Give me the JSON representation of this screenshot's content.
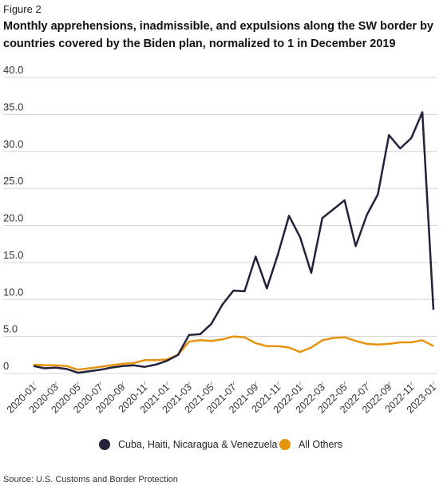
{
  "figure_label": "Figure 2",
  "title": "Monthly apprehensions, inadmissible, and expulsions along the SW border by countries covered by the Biden plan, normalized to 1 in December 2019",
  "source": "Source: U.S. Customs and Border Protection",
  "chart_data": {
    "type": "line",
    "ylim": [
      0,
      40
    ],
    "yticks": [
      "40.0",
      "35.0",
      "30.0",
      "25.0",
      "20.0",
      "15.0",
      "10.0",
      "5.0",
      "0"
    ],
    "ytick_values": [
      40,
      35,
      30,
      25,
      20,
      15,
      10,
      5,
      0
    ],
    "grid": true,
    "legend_position": "bottom",
    "x": [
      "2020-01",
      "2020-02",
      "2020-03",
      "2020-04",
      "2020-05",
      "2020-06",
      "2020-07",
      "2020-08",
      "2020-09",
      "2020-10",
      "2020-11",
      "2020-12",
      "2021-01",
      "2021-02",
      "2021-03",
      "2021-04",
      "2021-05",
      "2021-06",
      "2021-07",
      "2021-08",
      "2021-09",
      "2021-10",
      "2021-11",
      "2021-12",
      "2022-01",
      "2022-02",
      "2022-03",
      "2022-04",
      "2022-05",
      "2022-06",
      "2022-07",
      "2022-08",
      "2022-09",
      "2022-10",
      "2022-11",
      "2022-12",
      "2023-01"
    ],
    "xtick_labels": [
      "2020-01",
      "2020-03",
      "2020-05",
      "2020-07",
      "2020-09",
      "2020-11",
      "2021-01",
      "2021-03",
      "2021-05",
      "2021-07",
      "2021-09",
      "2021-11",
      "2022-01",
      "2022-03",
      "2022-05",
      "2022-07",
      "2022-09",
      "2022-11",
      "2023-01"
    ],
    "series": [
      {
        "name": "Cuba, Haiti, Nicaragua & Venezuela",
        "color": "#22223a",
        "values": [
          1.0,
          0.7,
          0.8,
          0.6,
          0.1,
          0.3,
          0.5,
          0.8,
          1.0,
          1.1,
          0.9,
          1.2,
          1.7,
          2.5,
          5.2,
          5.3,
          6.7,
          9.3,
          11.2,
          11.1,
          15.8,
          11.5,
          16.1,
          21.3,
          18.4,
          13.6,
          21.0,
          22.2,
          23.4,
          17.2,
          21.4,
          24.2,
          32.2,
          30.4,
          31.8,
          35.3,
          8.6
        ]
      },
      {
        "name": "All Others",
        "color": "#e8930e",
        "values": [
          1.2,
          1.1,
          1.1,
          1.0,
          0.5,
          0.7,
          0.9,
          1.1,
          1.3,
          1.4,
          1.8,
          1.8,
          1.9,
          2.5,
          4.3,
          4.5,
          4.4,
          4.6,
          5.0,
          4.9,
          4.1,
          3.7,
          3.7,
          3.5,
          2.9,
          3.5,
          4.5,
          4.8,
          4.9,
          4.4,
          4.0,
          3.9,
          4.0,
          4.2,
          4.2,
          4.5,
          3.7
        ]
      }
    ]
  }
}
